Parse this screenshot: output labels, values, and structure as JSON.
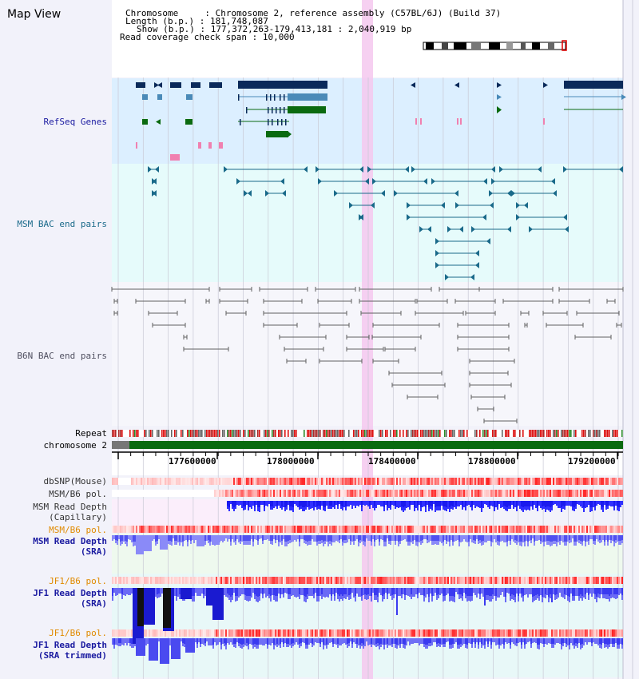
{
  "view": {
    "title": "Map View",
    "chromosome": "Chromosome 2, reference assembly (C57BL/6J) (Build 37)",
    "length": "181,748,087",
    "show": "177,372,263-179,413,181 : 2,040,919 bp",
    "read_coverage_span": "10,000",
    "labels": {
      "chromosome": "Chromosome",
      "length": "Length (b.p.)",
      "show": "Show (b.p.)",
      "span": "Read coverage check span"
    }
  },
  "tracks": {
    "refseq": "RefSeq Genes",
    "msm_bac": "MSM BAC end pairs",
    "b6n_bac": "B6N BAC end pairs",
    "repeat": "Repeat",
    "chromosome": "chromosome 2",
    "dbsnp": "dbSNP(Mouse)",
    "msm_b6_pol": "MSM/B6 pol.",
    "msm_depth_cap_1": "MSM Read Depth",
    "msm_depth_cap_2": "(Capillary)",
    "msm_b6_pol_sra": "MSM/B6 pol.",
    "msm_depth_sra_1": "MSM Read Depth",
    "msm_depth_sra_2": "(SRA)",
    "jf1_b6_pol": "JF1/B6 pol.",
    "jf1_depth_1": "JF1 Read Depth",
    "jf1_depth_2": "(SRA)",
    "jf1_b6_pol_2": "JF1/B6 pol.",
    "jf1_trim_1": "JF1 Read Depth",
    "jf1_trim_2": "(SRA trimmed)"
  },
  "axis": {
    "ticks": [
      "177600000",
      "178000000",
      "178400000",
      "178800000",
      "179200000"
    ]
  },
  "colors": {
    "navy": "#0a2a5a",
    "steelblue": "#4a8ab8",
    "green": "#0a6a10",
    "pink": "#f080b0",
    "teal": "#1a6a8a",
    "gray": "#606060",
    "highlight": "#f5c8ee",
    "depth_blue": "#1a1aee",
    "depth_light": "#6a6af5"
  }
}
